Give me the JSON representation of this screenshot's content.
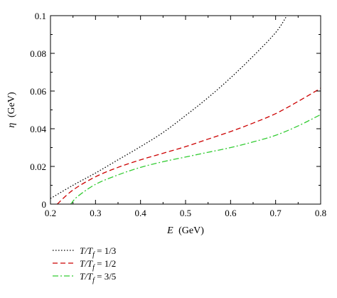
{
  "chart_data": {
    "type": "line",
    "xlabel_var": "E",
    "xlabel_unit": "(GeV)",
    "ylabel_var": "η",
    "ylabel_unit": "(GeV)",
    "xlim": [
      0.2,
      0.8
    ],
    "ylim": [
      0,
      0.1
    ],
    "x_ticks": [
      "0.2",
      "0.3",
      "0.4",
      "0.5",
      "0.6",
      "0.7",
      "0.8"
    ],
    "y_ticks": [
      "0",
      "0.02",
      "0.04",
      "0.06",
      "0.08",
      "0.1"
    ],
    "grid": false,
    "legend_position": "bottom-left, below plot",
    "series": [
      {
        "legend_base": "T/T",
        "legend_sub": "f",
        "legend_value": " = 1/3",
        "color": "#000000",
        "dash": "dotted",
        "x": [
          0.2,
          0.25,
          0.3,
          0.35,
          0.4,
          0.45,
          0.5,
          0.55,
          0.6,
          0.65,
          0.7,
          0.725
        ],
        "y": [
          0.003,
          0.01,
          0.0165,
          0.0235,
          0.0305,
          0.038,
          0.047,
          0.0565,
          0.067,
          0.0785,
          0.091,
          0.1
        ]
      },
      {
        "legend_base": "T/T",
        "legend_sub": "f",
        "legend_value": " = 1/2",
        "color": "#cc0000",
        "dash": "dashed",
        "x": [
          0.215,
          0.25,
          0.3,
          0.35,
          0.4,
          0.45,
          0.5,
          0.55,
          0.6,
          0.65,
          0.7,
          0.75,
          0.8
        ],
        "y": [
          0.0,
          0.0075,
          0.0145,
          0.0195,
          0.0235,
          0.027,
          0.0305,
          0.0345,
          0.0385,
          0.043,
          0.048,
          0.0545,
          0.0615
        ]
      },
      {
        "legend_base": "T/T",
        "legend_sub": "f",
        "legend_value": " = 3/5",
        "color": "#33cc33",
        "dash": "dashdot",
        "x": [
          0.245,
          0.26,
          0.3,
          0.35,
          0.4,
          0.45,
          0.5,
          0.55,
          0.6,
          0.65,
          0.7,
          0.75,
          0.8
        ],
        "y": [
          0.0,
          0.004,
          0.0105,
          0.0155,
          0.0195,
          0.0225,
          0.025,
          0.0275,
          0.03,
          0.033,
          0.0365,
          0.0415,
          0.0475
        ]
      }
    ]
  }
}
